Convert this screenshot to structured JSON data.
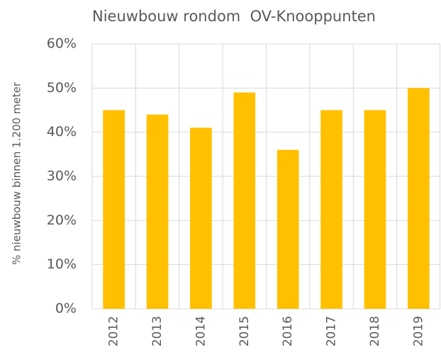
{
  "chart_data": {
    "type": "bar",
    "title": "Nieuwbouw rondom  OV-Knooppunten",
    "y_label": "% nieuwbouw binnen 1.200 meter",
    "categories": [
      "2012",
      "2013",
      "2014",
      "2015",
      "2016",
      "2017",
      "2018",
      "2019"
    ],
    "values": [
      45,
      44,
      41,
      49,
      36,
      45,
      45,
      50
    ],
    "color": "#ffc000",
    "ylim": [
      0,
      60
    ],
    "yticks": [
      {
        "value": 0,
        "label": "0%"
      },
      {
        "value": 10,
        "label": "10%"
      },
      {
        "value": 20,
        "label": "20%"
      },
      {
        "value": 30,
        "label": "30%"
      },
      {
        "value": 40,
        "label": "40%"
      },
      {
        "value": 50,
        "label": "50%"
      },
      {
        "value": 60,
        "label": "60%"
      }
    ],
    "grid": true
  }
}
